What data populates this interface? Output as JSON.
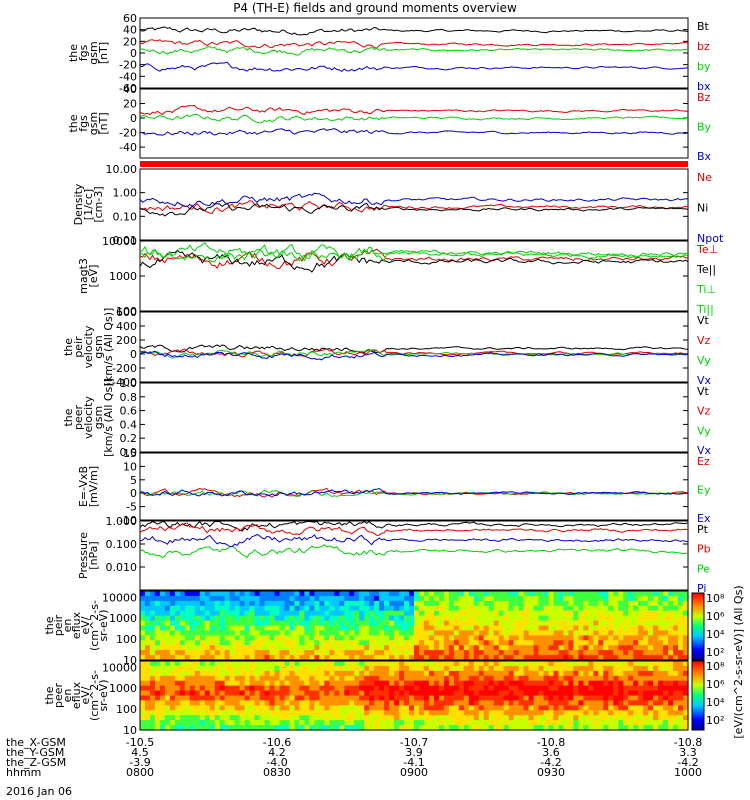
{
  "title": "P4 (TH-E) fields and ground moments overview",
  "footer": {
    "date": "2016 Jan 06"
  },
  "colors": {
    "black": "#000000",
    "red": "#e00000",
    "green": "#00d000",
    "blue": "#0000d0"
  },
  "chart_data": {
    "type": "line",
    "x_time_labels": [
      "0800",
      "0830",
      "0900",
      "0930",
      "1000"
    ],
    "panels": [
      {
        "id": "fgs-gsm",
        "ylabel": [
          "the",
          "fgs",
          "gsm",
          "[nT]"
        ],
        "ylim": [
          -60,
          60
        ],
        "log": false,
        "yticks": [
          "60",
          "40",
          "20",
          "0",
          "-20",
          "-40",
          "-60"
        ],
        "series": [
          {
            "name": "Bt",
            "color": "#000000",
            "level": 38
          },
          {
            "name": "bz",
            "color": "#e00000",
            "level": 15
          },
          {
            "name": "by",
            "color": "#00d000",
            "level": 5
          },
          {
            "name": "bx",
            "color": "#0000d0",
            "level": -25
          }
        ]
      },
      {
        "id": "fgs-gsm-2",
        "ylabel": [
          "the",
          "fgs",
          "gsm",
          "[nT]"
        ],
        "ylim": [
          -55,
          40
        ],
        "log": false,
        "yticks": [
          "40",
          "20",
          "0",
          "-20",
          "-40"
        ],
        "series": [
          {
            "name": "Bz",
            "color": "#e00000",
            "level": 10
          },
          {
            "name": "By",
            "color": "#00d000",
            "level": 0
          },
          {
            "name": "Bx",
            "color": "#0000d0",
            "level": -20
          }
        ]
      },
      {
        "id": "density",
        "ylabel": [
          "Density",
          "[1/cc]",
          "[cm-3]"
        ],
        "ylim": [
          0.01,
          10
        ],
        "log": true,
        "yticks": [
          "10.00",
          "1.00",
          "0.10",
          "0.01"
        ],
        "series": [
          {
            "name": "Ne",
            "color": "#e00000",
            "level": 0.25
          },
          {
            "name": "Ni",
            "color": "#000000",
            "level": 0.2
          },
          {
            "name": "Npot",
            "color": "#0000d0",
            "level": 0.5
          }
        ]
      },
      {
        "id": "temperature",
        "ylabel": [
          "magt3",
          "[eV]"
        ],
        "ylim": [
          100,
          10000
        ],
        "log": true,
        "yticks": [
          "10000",
          "1000",
          "100"
        ],
        "series": [
          {
            "name": "Te⊥",
            "color": "#e00000",
            "level": 3000
          },
          {
            "name": "Te||",
            "color": "#000000",
            "level": 2500
          },
          {
            "name": "Ti⊥",
            "color": "#00d000",
            "level": 4000
          },
          {
            "name": "Ti||",
            "color": "#00d000",
            "level": 4500
          }
        ]
      },
      {
        "id": "peir-velocity",
        "ylabel": [
          "the",
          "peir",
          "velocity",
          "gsm",
          "[km/s (All Qs)]"
        ],
        "ylim": [
          -400,
          600
        ],
        "log": false,
        "yticks": [
          "600",
          "400",
          "200",
          "0",
          "-200",
          "-400"
        ],
        "series": [
          {
            "name": "Vt",
            "color": "#000000",
            "level": 80
          },
          {
            "name": "Vz",
            "color": "#e00000",
            "level": 10
          },
          {
            "name": "Vy",
            "color": "#00d000",
            "level": 0
          },
          {
            "name": "Vx",
            "color": "#0000d0",
            "level": -10
          }
        ]
      },
      {
        "id": "peer-velocity",
        "ylabel": [
          "the",
          "peer",
          "velocity",
          "gsm",
          "[km/s (All Qs)]"
        ],
        "ylim": [
          0,
          1
        ],
        "log": false,
        "yticks": [
          "1.0",
          "0.8",
          "0.6",
          "0.4",
          "0.2",
          "0.0"
        ],
        "series": [
          {
            "name": "Vt",
            "color": "#000000",
            "level": null
          },
          {
            "name": "Vz",
            "color": "#e00000",
            "level": null
          },
          {
            "name": "Vy",
            "color": "#00d000",
            "level": null
          },
          {
            "name": "Vx",
            "color": "#0000d0",
            "level": null
          }
        ]
      },
      {
        "id": "e-field",
        "ylabel": [
          "E=-VxB",
          "[mV/m]"
        ],
        "ylim": [
          -10,
          15
        ],
        "log": false,
        "yticks": [
          "15",
          "10",
          "5",
          "0",
          "-5",
          "-10"
        ],
        "series": [
          {
            "name": "Ez",
            "color": "#e00000",
            "level": 0
          },
          {
            "name": "Ey",
            "color": "#00d000",
            "level": 0
          },
          {
            "name": "Ex",
            "color": "#0000d0",
            "level": 0
          }
        ]
      },
      {
        "id": "pressure",
        "ylabel": [
          "Pressure",
          "[nPa]"
        ],
        "ylim": [
          0.001,
          1
        ],
        "log": true,
        "yticks": [
          "1.000",
          "0.100",
          "0.010"
        ],
        "series": [
          {
            "name": "Pt",
            "color": "#000000",
            "level": 0.7
          },
          {
            "name": "Pb",
            "color": "#e00000",
            "level": 0.4
          },
          {
            "name": "Pe",
            "color": "#00d000",
            "level": 0.05
          },
          {
            "name": "Pi",
            "color": "#0000d0",
            "level": 0.15
          }
        ]
      }
    ],
    "spectrograms": [
      {
        "id": "peir-eflux",
        "ylabel": [
          "the",
          "peir",
          "en",
          "eflux",
          "eV/",
          "(cm^2-s-",
          "sr-eV)"
        ],
        "ylim": [
          10,
          20000
        ],
        "log": true,
        "yticks": [
          "10000",
          "1000",
          "100",
          "10"
        ]
      },
      {
        "id": "peer-eflux",
        "ylabel": [
          "the",
          "peer",
          "en",
          "eflux",
          "eV/",
          "(cm^2-s-",
          "sr-eV)"
        ],
        "ylim": [
          10,
          20000
        ],
        "log": true,
        "yticks": [
          "10000",
          "1000",
          "100",
          "10"
        ]
      }
    ],
    "colorbar": {
      "label": "[eV/(cm^2-s-sr-eV)] (All Qs)",
      "ticks": [
        "10⁸",
        "10⁶",
        "10⁴",
        "10²",
        "10⁸",
        "10⁶",
        "10⁴",
        "10²"
      ]
    },
    "orbit": [
      {
        "label": "the_X-GSM",
        "values": [
          "-10.5",
          "-10.6",
          "-10.7",
          "-10.8",
          "-10.8"
        ]
      },
      {
        "label": "the_Y-GSM",
        "values": [
          "4.5",
          "4.2",
          "3.9",
          "3.6",
          "3.3"
        ]
      },
      {
        "label": "the_Z-GSM",
        "values": [
          "-3.9",
          "-4.0",
          "-4.1",
          "-4.2",
          "-4.2"
        ]
      },
      {
        "label": "hhmm",
        "values": [
          "0800",
          "0830",
          "0900",
          "0930",
          "1000"
        ]
      }
    ]
  }
}
